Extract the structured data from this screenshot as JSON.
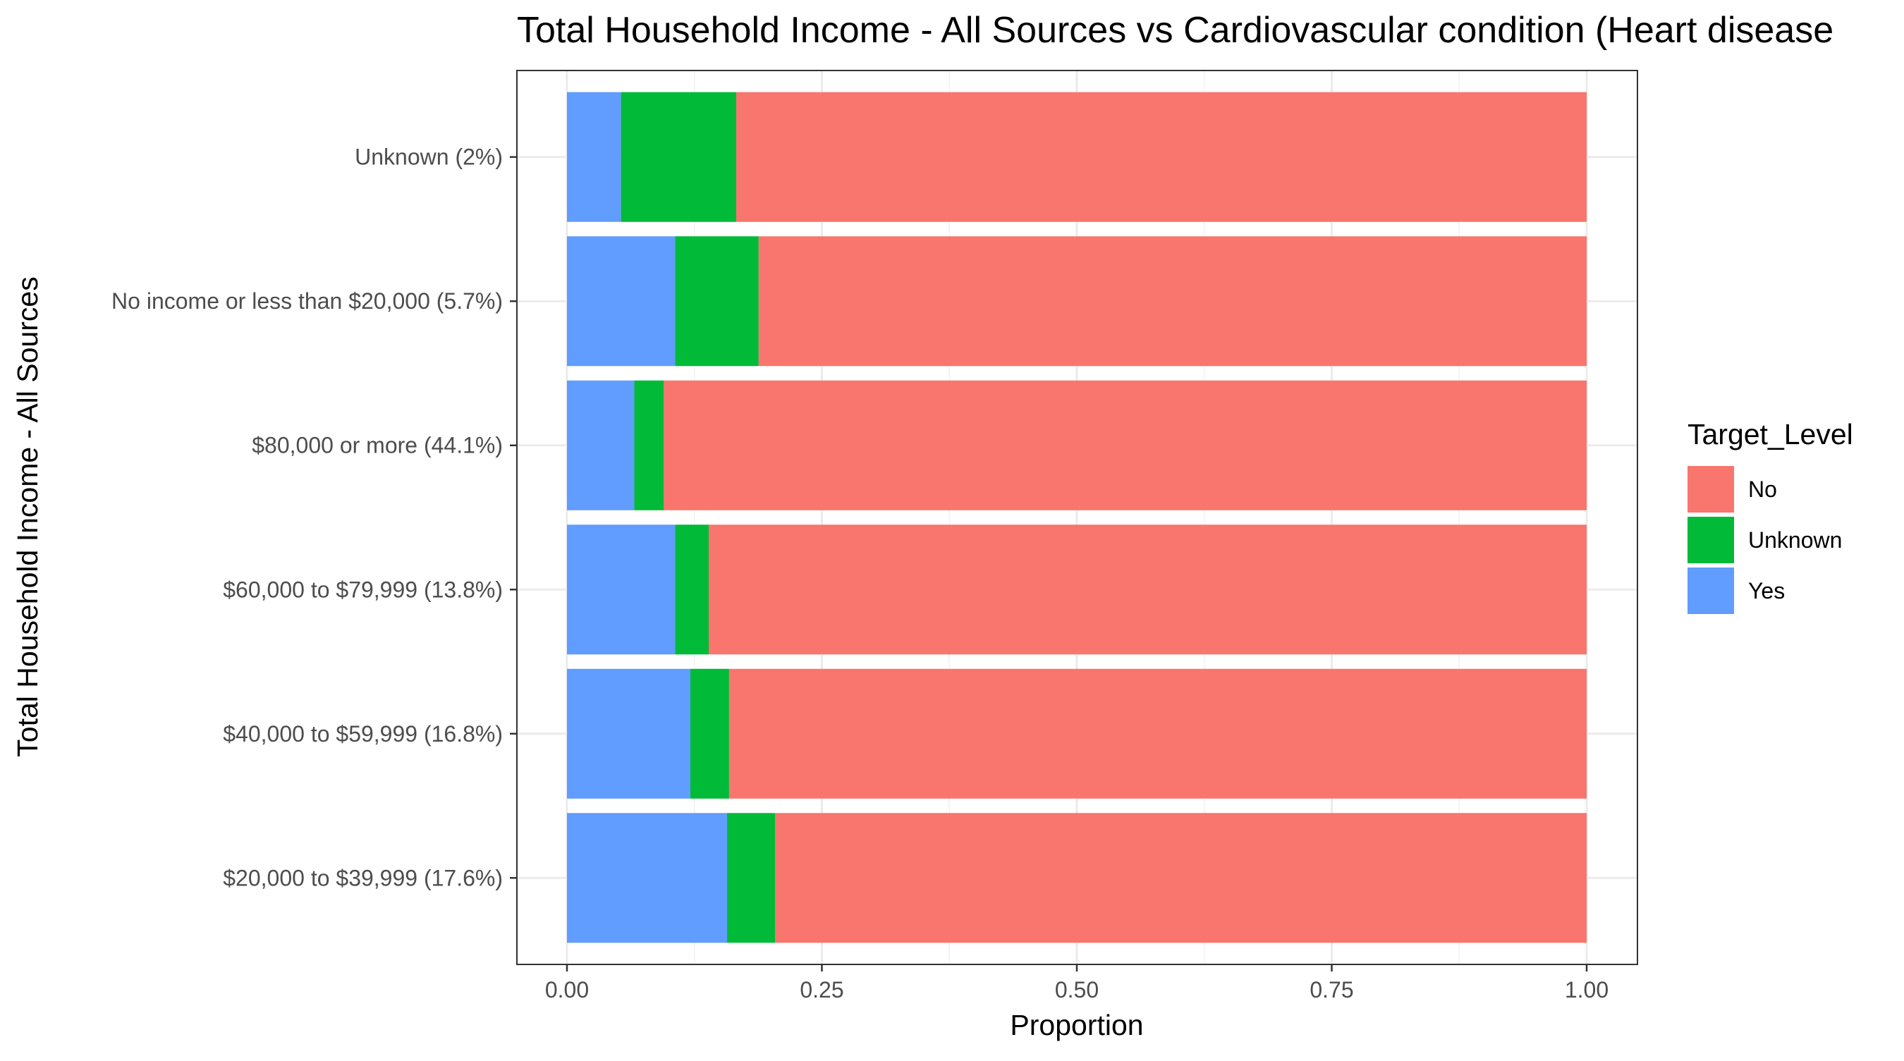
{
  "chart_data": {
    "type": "bar",
    "orientation": "horizontal",
    "stacked": true,
    "title": "Total Household Income - All Sources vs Cardiovascular condition (Heart disease",
    "xlabel": "Proportion",
    "ylabel": "Total Household Income - All Sources",
    "xlim": [
      0,
      1
    ],
    "x_ticks": [
      0,
      0.25,
      0.5,
      0.75,
      1
    ],
    "x_tick_labels": [
      "0.00",
      "0.25",
      "0.50",
      "0.75",
      "1.00"
    ],
    "grid": true,
    "categories": [
      "Unknown (2%)",
      "No income or less than $20,000 (5.7%)",
      "$80,000 or more (44.1%)",
      "$60,000 to $79,999 (13.8%)",
      "$40,000 to $59,999 (16.8%)",
      "$20,000 to $39,999 (17.6%)"
    ],
    "stack_order": [
      "Yes",
      "Unknown",
      "No"
    ],
    "series": [
      {
        "name": "Yes",
        "color": "#619CFF",
        "values": [
          0.053,
          0.106,
          0.066,
          0.106,
          0.121,
          0.157
        ]
      },
      {
        "name": "Unknown",
        "color": "#00BA38",
        "values": [
          0.113,
          0.082,
          0.029,
          0.033,
          0.038,
          0.047
        ]
      },
      {
        "name": "No",
        "color": "#F8766D",
        "values": [
          0.834,
          0.812,
          0.905,
          0.861,
          0.841,
          0.796
        ]
      }
    ],
    "legend": {
      "title": "Target_Level",
      "position": "right",
      "items": [
        {
          "label": "No",
          "color": "#F8766D"
        },
        {
          "label": "Unknown",
          "color": "#00BA38"
        },
        {
          "label": "Yes",
          "color": "#619CFF"
        }
      ]
    }
  }
}
